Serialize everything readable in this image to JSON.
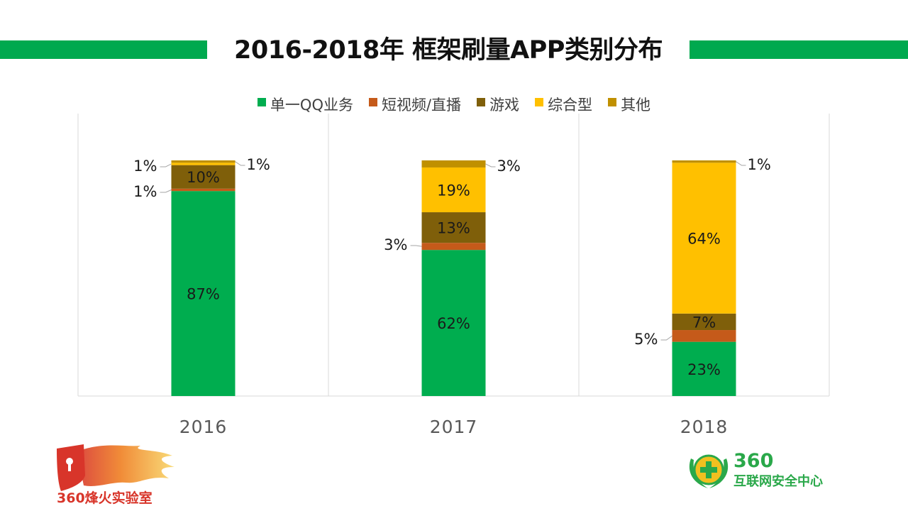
{
  "title": "2016-2018年 框架刷量APP类别分布",
  "colors": {
    "accent_green_bar": "#00a94f"
  },
  "chart_data": {
    "type": "bar",
    "stacked": true,
    "title": "2016-2018年 框架刷量APP类别分布",
    "xlabel": "",
    "ylabel": "",
    "ylim": [
      0,
      100
    ],
    "grid": false,
    "legend_position": "top",
    "categories": [
      "2016",
      "2017",
      "2018"
    ],
    "series": [
      {
        "name": "单一QQ业务",
        "color": "#00ad4f",
        "values": [
          87,
          62,
          23
        ],
        "labels": [
          "87%",
          "62%",
          "23%"
        ]
      },
      {
        "name": "短视频/直播",
        "color": "#c55a1a",
        "values": [
          1,
          3,
          5
        ],
        "labels": [
          "1%",
          "3%",
          "5%"
        ]
      },
      {
        "name": "游戏",
        "color": "#7f5f0a",
        "values": [
          10,
          13,
          7
        ],
        "labels": [
          "10%",
          "13%",
          "7%"
        ]
      },
      {
        "name": "综合型",
        "color": "#ffc000",
        "values": [
          1,
          19,
          64
        ],
        "labels": [
          "1%",
          "19%",
          "64%"
        ]
      },
      {
        "name": "其他",
        "color": "#c09000",
        "values": [
          1,
          3,
          1
        ],
        "labels": [
          "1%",
          "3%",
          "1%"
        ]
      }
    ]
  },
  "logos": {
    "left_text": "360烽火实验室",
    "right_brand": "360",
    "right_text": "互联网安全中心"
  }
}
